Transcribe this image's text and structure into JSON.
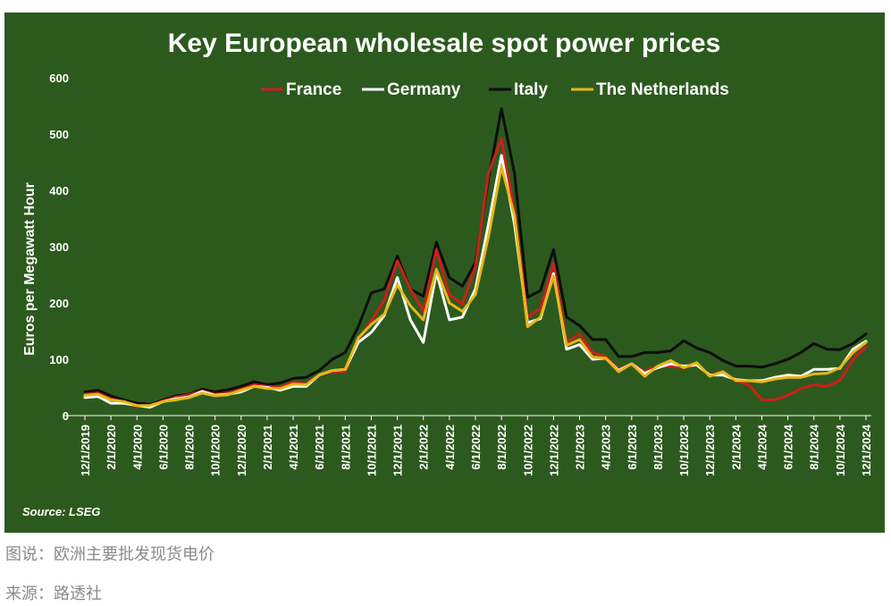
{
  "captions": {
    "figure_caption": "图说：欧洲主要批发现货电价",
    "source_caption": "来源：路透社"
  },
  "colors": {
    "background": "#2c5a1e",
    "text": "#ffffff",
    "gridline": "#ffffff",
    "France": "#cc1f1a",
    "Germany": "#ffffff",
    "Italy": "#0d0d0d",
    "The Netherlands": "#e6b817"
  },
  "chart_data": {
    "type": "line",
    "title": "Key European wholesale spot power prices",
    "ylabel": "Euros per Megawatt Hour",
    "xlabel": "",
    "source_note": "Source: LSEG",
    "ylim": [
      0,
      600
    ],
    "yticks": [
      0,
      100,
      200,
      300,
      400,
      500,
      600
    ],
    "grid": false,
    "legend_position": "top",
    "x": [
      "12/1/2019",
      "1/1/2020",
      "2/1/2020",
      "3/1/2020",
      "4/1/2020",
      "5/1/2020",
      "6/1/2020",
      "7/1/2020",
      "8/1/2020",
      "9/1/2020",
      "10/1/2020",
      "11/1/2020",
      "12/1/2020",
      "1/1/2021",
      "2/1/2021",
      "3/1/2021",
      "4/1/2021",
      "5/1/2021",
      "6/1/2021",
      "7/1/2021",
      "8/1/2021",
      "9/1/2021",
      "10/1/2021",
      "11/1/2021",
      "12/1/2021",
      "1/1/2022",
      "2/1/2022",
      "3/1/2022",
      "4/1/2022",
      "5/1/2022",
      "6/1/2022",
      "7/1/2022",
      "8/1/2022",
      "9/1/2022",
      "10/1/2022",
      "11/1/2022",
      "12/1/2022",
      "1/1/2023",
      "2/1/2023",
      "3/1/2023",
      "4/1/2023",
      "5/1/2023",
      "6/1/2023",
      "7/1/2023",
      "8/1/2023",
      "9/1/2023",
      "10/1/2023",
      "11/1/2023",
      "12/1/2023",
      "1/1/2024",
      "2/1/2024",
      "3/1/2024",
      "4/1/2024",
      "5/1/2024",
      "6/1/2024",
      "7/1/2024",
      "8/1/2024",
      "9/1/2024",
      "10/1/2024",
      "11/1/2024",
      "12/1/2024"
    ],
    "xtick_labels": [
      "12/1/2019",
      "2/1/2020",
      "4/1/2020",
      "6/1/2020",
      "8/1/2020",
      "10/1/2020",
      "12/1/2020",
      "2/1/2021",
      "4/1/2021",
      "6/1/2021",
      "8/1/2021",
      "10/1/2021",
      "12/1/2021",
      "2/1/2022",
      "4/1/2022",
      "6/1/2022",
      "8/1/2022",
      "10/1/2022",
      "12/1/2022",
      "2/1/2023",
      "4/1/2023",
      "6/1/2023",
      "8/1/2023",
      "10/1/2023",
      "12/1/2023",
      "2/1/2024",
      "4/1/2024",
      "6/1/2024",
      "8/1/2024",
      "10/1/2024",
      "12/1/2024"
    ],
    "series": [
      {
        "name": "France",
        "values": [
          38,
          40,
          30,
          25,
          16,
          18,
          26,
          33,
          37,
          44,
          38,
          40,
          47,
          55,
          52,
          50,
          60,
          56,
          72,
          78,
          78,
          135,
          168,
          205,
          275,
          225,
          185,
          295,
          215,
          198,
          265,
          430,
          492,
          360,
          175,
          190,
          270,
          130,
          145,
          112,
          105,
          82,
          92,
          78,
          88,
          88,
          85,
          90,
          72,
          78,
          62,
          55,
          28,
          28,
          36,
          48,
          55,
          52,
          62,
          100,
          122
        ]
      },
      {
        "name": "Germany",
        "values": [
          32,
          34,
          22,
          22,
          18,
          15,
          25,
          30,
          33,
          43,
          36,
          38,
          42,
          52,
          50,
          45,
          52,
          52,
          72,
          80,
          82,
          130,
          148,
          178,
          245,
          170,
          130,
          255,
          170,
          175,
          225,
          340,
          462,
          340,
          165,
          172,
          252,
          118,
          126,
          100,
          102,
          80,
          92,
          75,
          85,
          92,
          88,
          90,
          72,
          72,
          64,
          62,
          62,
          68,
          72,
          70,
          82,
          82,
          84,
          118,
          132
        ]
      },
      {
        "name": "Italy",
        "values": [
          42,
          45,
          35,
          28,
          22,
          20,
          28,
          35,
          38,
          47,
          42,
          46,
          52,
          60,
          55,
          58,
          66,
          68,
          80,
          100,
          112,
          158,
          218,
          225,
          283,
          225,
          212,
          308,
          245,
          230,
          272,
          420,
          545,
          430,
          210,
          222,
          295,
          175,
          160,
          135,
          135,
          105,
          105,
          112,
          112,
          115,
          133,
          120,
          112,
          98,
          88,
          88,
          86,
          92,
          100,
          112,
          128,
          118,
          117,
          128,
          145
        ]
      },
      {
        "name": "The Netherlands",
        "values": [
          36,
          38,
          28,
          25,
          18,
          18,
          25,
          28,
          32,
          40,
          35,
          37,
          45,
          52,
          48,
          48,
          56,
          55,
          72,
          80,
          82,
          138,
          162,
          180,
          232,
          195,
          170,
          260,
          200,
          185,
          215,
          318,
          442,
          355,
          158,
          175,
          248,
          125,
          135,
          104,
          102,
          78,
          92,
          70,
          88,
          98,
          85,
          94,
          70,
          78,
          62,
          62,
          60,
          65,
          68,
          68,
          74,
          75,
          85,
          112,
          130
        ]
      }
    ]
  }
}
